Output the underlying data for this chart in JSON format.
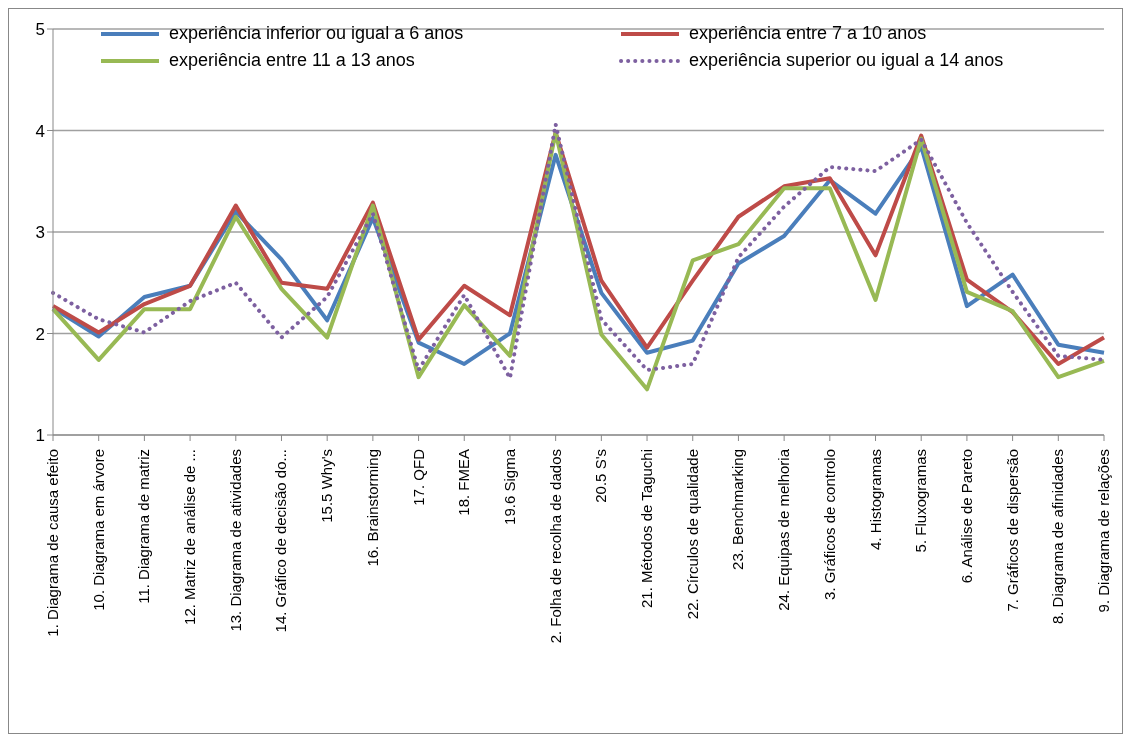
{
  "chart_data": {
    "type": "line",
    "categories": [
      "1. Diagrama de causa efeito",
      "10. Diagrama em árvore",
      "11. Diagrama de matriz",
      "12. Matriz de análise de ...",
      "13. Diagrama de atividades",
      "14. Gráfico de decisão do...",
      "15.5 Why's",
      "16. Brainstorming",
      "17. QFD",
      "18. FMEA",
      "19.6 Sigma",
      "2. Folha de recolha de dados",
      "20.5 S's",
      "21. Métodos de Taguchi",
      "22. Círculos de qualidade",
      "23. Benchmarking",
      "24. Equipas de melhoria",
      "3. Gráficos de controlo",
      "4. Histogramas",
      "5. Fluxogramas",
      "6. Análise de Pareto",
      "7. Gráficos de dispersão",
      "8. Diagrama de afinidades",
      "9. Diagrama de relações"
    ],
    "series": [
      {
        "name": "experiência inferior ou igual a 6 anos",
        "color": "#4a7ebb",
        "line_style": "solid",
        "values": [
          2.25,
          1.97,
          2.36,
          2.47,
          3.2,
          2.73,
          2.13,
          3.14,
          1.91,
          1.7,
          2.0,
          3.76,
          2.4,
          1.81,
          1.93,
          2.69,
          2.96,
          3.51,
          3.18,
          3.84,
          2.27,
          2.58,
          1.89,
          1.81
        ]
      },
      {
        "name": "experiência entre 7 a 10 anos",
        "color": "#be4b48",
        "line_style": "solid",
        "values": [
          2.27,
          2.01,
          2.29,
          2.47,
          3.26,
          2.5,
          2.44,
          3.29,
          1.94,
          2.47,
          2.18,
          3.98,
          2.52,
          1.86,
          2.52,
          3.15,
          3.45,
          3.53,
          2.77,
          3.95,
          2.53,
          2.21,
          1.7,
          1.96
        ]
      },
      {
        "name": "experiência entre 11 a 13 anos",
        "color": "#98b954",
        "line_style": "solid",
        "values": [
          2.24,
          1.74,
          2.24,
          2.24,
          3.15,
          2.44,
          1.96,
          3.26,
          1.57,
          2.28,
          1.78,
          3.98,
          1.99,
          1.45,
          2.72,
          2.88,
          3.43,
          3.43,
          2.33,
          3.92,
          2.41,
          2.22,
          1.57,
          1.73
        ]
      },
      {
        "name": "experiência superior ou igual a 14 anos",
        "color": "#7d60a0",
        "line_style": "dotted",
        "values": [
          2.4,
          2.14,
          2.01,
          2.32,
          2.5,
          1.96,
          2.36,
          3.18,
          1.64,
          2.38,
          1.56,
          4.06,
          2.14,
          1.64,
          1.7,
          2.75,
          3.25,
          3.64,
          3.6,
          3.91,
          3.09,
          2.41,
          1.78,
          1.74
        ]
      }
    ],
    "ylim": [
      1,
      5
    ],
    "yticks": [
      1,
      2,
      3,
      4,
      5
    ],
    "grid": "y",
    "legend": "top",
    "marker": "none"
  }
}
